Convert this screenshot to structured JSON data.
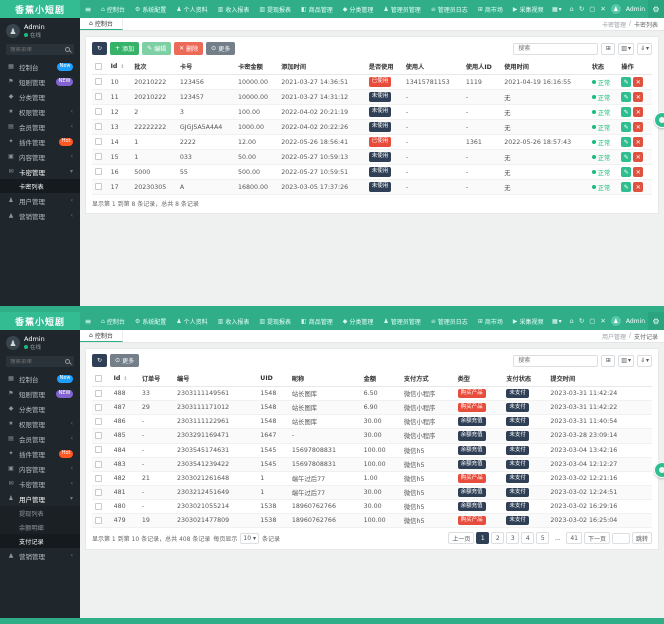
{
  "brand": {
    "logo": "香蕉小短剧",
    "primary_color": "#2fae88"
  },
  "navbar": {
    "items": [
      {
        "label": "控制台",
        "icon": "home"
      },
      {
        "label": "系统配置",
        "icon": "gear"
      },
      {
        "label": "个人资料",
        "icon": "person"
      },
      {
        "label": "收入报表",
        "icon": "chart"
      },
      {
        "label": "提现报表",
        "icon": "chart"
      },
      {
        "label": "商品管理",
        "icon": "bag"
      },
      {
        "label": "分类管理",
        "icon": "tag"
      },
      {
        "label": "管理员管理",
        "icon": "person"
      },
      {
        "label": "管理员日志",
        "icon": "log"
      },
      {
        "label": "商市场",
        "icon": "store"
      },
      {
        "label": "采集视频",
        "icon": "video"
      },
      {
        "label": "会员管理",
        "icon": "person"
      }
    ],
    "layout_dropdown_icon": "grid",
    "right_icons": [
      "home",
      "refresh",
      "expand",
      "close"
    ],
    "admin_label": "Admin"
  },
  "sidebar_user": {
    "name": "Admin",
    "status": "在线"
  },
  "sidebar_search_placeholder": "搜索菜单",
  "toolbar_search_placeholder": "搜索",
  "screens": [
    {
      "sidebar": [
        {
          "label": "控制台",
          "icon": "dashboard",
          "badge": {
            "text": "New",
            "color": "#1e9fff"
          }
        },
        {
          "label": "短剧管理",
          "icon": "drama",
          "badge": {
            "text": "NEW",
            "color": "#8065d0"
          }
        },
        {
          "label": "分类管理",
          "icon": "category"
        },
        {
          "label": "权限管理",
          "icon": "auth",
          "arrow": true
        },
        {
          "label": "会员管理",
          "icon": "member",
          "arrow": true
        },
        {
          "label": "插件管理",
          "icon": "plugin",
          "badge": {
            "text": "Hot",
            "color": "#ff5722"
          }
        },
        {
          "label": "内容管理",
          "icon": "content",
          "arrow": true
        },
        {
          "label": "卡密管理",
          "icon": "card",
          "expanded": true,
          "children": [
            {
              "label": "卡密列表",
              "active": true
            }
          ]
        },
        {
          "label": "用户管理",
          "icon": "user",
          "arrow": true
        },
        {
          "label": "营销管理",
          "icon": "marketing",
          "arrow": true
        }
      ],
      "content": {
        "tab": "控制台",
        "crumb_group": "卡密管理",
        "crumb_page": "卡密列表",
        "toolbar": [
          {
            "label": "",
            "icon": "refresh",
            "style": "dark"
          },
          {
            "label": "添加",
            "icon": "plus",
            "style": "green"
          },
          {
            "label": "编辑",
            "icon": "edit",
            "style": "lgreen"
          },
          {
            "label": "删除",
            "icon": "trash",
            "style": "red"
          },
          {
            "label": "更多",
            "icon": "circle",
            "style": "gray"
          }
        ],
        "table": {
          "columns": [
            {
              "label": "Id",
              "sort": true
            },
            {
              "label": "批次"
            },
            {
              "label": "卡号"
            },
            {
              "label": "卡密金额"
            },
            {
              "label": "添加时间"
            },
            {
              "label": "是否使用"
            },
            {
              "label": "使用人"
            },
            {
              "label": "使用人ID"
            },
            {
              "label": "使用时间"
            },
            {
              "label": "状态"
            },
            {
              "label": "操作"
            }
          ],
          "rows": [
            [
              "10",
              "20210222",
              "123456",
              "10000.00",
              "2021-03-27 14:36:51",
              {
                "badge": "已使用",
                "color": "#e74c3c"
              },
              "13415781153",
              "1119",
              "2021-04-19 16:16:55",
              {
                "dot": "正常"
              },
              {
                "ops": true
              }
            ],
            [
              "11",
              "20210222",
              "123457",
              "10000.00",
              "2021-03-27 14:31:12",
              {
                "badge": "未使用",
                "color": "#2f4056"
              },
              "-",
              "-",
              "无",
              {
                "dot": "正常"
              },
              {
                "ops": true
              }
            ],
            [
              "12",
              "2",
              "3",
              "100.00",
              "2022-04-02 20:21:19",
              {
                "badge": "未使用",
                "color": "#2f4056"
              },
              "-",
              "-",
              "无",
              {
                "dot": "正常"
              },
              {
                "ops": true
              }
            ],
            [
              "13",
              "22222222",
              "GJGJ5A5A4A4",
              "1000.00",
              "2022-04-02 20:22:26",
              {
                "badge": "未使用",
                "color": "#2f4056"
              },
              "-",
              "-",
              "无",
              {
                "dot": "正常"
              },
              {
                "ops": true
              }
            ],
            [
              "14",
              "1",
              "2222",
              "12.00",
              "2022-05-26 18:56:41",
              {
                "badge": "已使用",
                "color": "#e74c3c"
              },
              "-",
              "1361",
              "2022-05-26 18:57:43",
              {
                "dot": "正常"
              },
              {
                "ops": true
              }
            ],
            [
              "15",
              "1",
              "033",
              "50.00",
              "2022-05-27 10:59:13",
              {
                "badge": "未使用",
                "color": "#2f4056"
              },
              "-",
              "-",
              "无",
              {
                "dot": "正常"
              },
              {
                "ops": true
              }
            ],
            [
              "16",
              "5000",
              "55",
              "500.00",
              "2022-05-27 10:59:51",
              {
                "badge": "未使用",
                "color": "#2f4056"
              },
              "-",
              "-",
              "无",
              {
                "dot": "正常"
              },
              {
                "ops": true
              }
            ],
            [
              "17",
              "20230305",
              "A",
              "16800.00",
              "2023-03-05 17:37:26",
              {
                "badge": "未使用",
                "color": "#2f4056"
              },
              "-",
              "-",
              "无",
              {
                "dot": "正常"
              },
              {
                "ops": true
              }
            ]
          ]
        },
        "footer": {
          "info": "显示第 1 到第 8 条记录，总共 8 条记录"
        }
      }
    },
    {
      "sidebar": [
        {
          "label": "控制台",
          "icon": "dashboard",
          "badge": {
            "text": "New",
            "color": "#1e9fff"
          }
        },
        {
          "label": "短剧管理",
          "icon": "drama",
          "badge": {
            "text": "NEW",
            "color": "#8065d0"
          }
        },
        {
          "label": "分类管理",
          "icon": "category"
        },
        {
          "label": "权限管理",
          "icon": "auth",
          "arrow": true
        },
        {
          "label": "会员管理",
          "icon": "member",
          "arrow": true
        },
        {
          "label": "插件管理",
          "icon": "plugin",
          "badge": {
            "text": "Hot",
            "color": "#ff5722"
          }
        },
        {
          "label": "内容管理",
          "icon": "content",
          "arrow": true
        },
        {
          "label": "卡密管理",
          "icon": "card",
          "arrow": true
        },
        {
          "label": "用户管理",
          "icon": "user",
          "expanded": true,
          "children": [
            {
              "label": "提现列表"
            },
            {
              "label": "余额明细"
            },
            {
              "label": "支付记录",
              "active": true
            }
          ]
        },
        {
          "label": "营销管理",
          "icon": "marketing",
          "arrow": true
        }
      ],
      "content": {
        "tab": "控制台",
        "crumb_group": "用户管理",
        "crumb_page": "支付记录",
        "toolbar": [
          {
            "label": "",
            "icon": "refresh",
            "style": "dark"
          },
          {
            "label": "更多",
            "icon": "circle",
            "style": "gray"
          }
        ],
        "table": {
          "columns": [
            {
              "label": "Id",
              "sort": true
            },
            {
              "label": "订单号"
            },
            {
              "label": "编号"
            },
            {
              "label": "UID"
            },
            {
              "label": "昵称"
            },
            {
              "label": "金额"
            },
            {
              "label": "支付方式"
            },
            {
              "label": "类型"
            },
            {
              "label": "支付状态"
            },
            {
              "label": "提交时间"
            }
          ],
          "rows": [
            [
              "488",
              "33",
              "2303111149561",
              "1548",
              "站长图库",
              "6.50",
              "微信小程序",
              {
                "badge": "购买产品",
                "color": "#e74c3c"
              },
              {
                "badge": "未支付",
                "color": "#2f4056"
              },
              "2023-03-31 11:42:24"
            ],
            [
              "487",
              "29",
              "2303111171012",
              "1548",
              "站长图库",
              "6.90",
              "微信小程序",
              {
                "badge": "购买产品",
                "color": "#e74c3c"
              },
              {
                "badge": "未支付",
                "color": "#2f4056"
              },
              "2023-03-31 11:42:22"
            ],
            [
              "486",
              "-",
              "2303111122961",
              "1548",
              "站长图库",
              "30.00",
              "微信小程序",
              {
                "badge": "余额充值",
                "color": "#2f4056"
              },
              {
                "badge": "未支付",
                "color": "#2f4056"
              },
              "2023-03-31 11:40:54"
            ],
            [
              "485",
              "-",
              "2303291169471",
              "1647",
              "-",
              "30.00",
              "微信小程序",
              {
                "badge": "余额充值",
                "color": "#2f4056"
              },
              {
                "badge": "未支付",
                "color": "#2f4056"
              },
              "2023-03-28 23:09:14"
            ],
            [
              "484",
              "-",
              "2303545174631",
              "1545",
              "15697808831",
              "100.00",
              "微信h5",
              {
                "badge": "余额充值",
                "color": "#2f4056"
              },
              {
                "badge": "未支付",
                "color": "#2f4056"
              },
              "2023-03-04 13:42:16"
            ],
            [
              "483",
              "-",
              "2303541239422",
              "1545",
              "15697808831",
              "100.00",
              "微信h5",
              {
                "badge": "余额充值",
                "color": "#2f4056"
              },
              {
                "badge": "未支付",
                "color": "#2f4056"
              },
              "2023-03-04 12:12:27"
            ],
            [
              "482",
              "21",
              "2303021261648",
              "1",
              "端午过后77",
              "1.00",
              "微信h5",
              {
                "badge": "购买产品",
                "color": "#e74c3c"
              },
              {
                "badge": "未支付",
                "color": "#2f4056"
              },
              "2023-03-02 12:21:16"
            ],
            [
              "481",
              "-",
              "2303212451649",
              "1",
              "端午过后77",
              "30.00",
              "微信h5",
              {
                "badge": "余额充值",
                "color": "#2f4056"
              },
              {
                "badge": "未支付",
                "color": "#2f4056"
              },
              "2023-03-02 12:24:51"
            ],
            [
              "480",
              "-",
              "2303021055214",
              "1538",
              "18960762766",
              "30.00",
              "微信h5",
              {
                "badge": "余额充值",
                "color": "#2f4056"
              },
              {
                "badge": "未支付",
                "color": "#2f4056"
              },
              "2023-03-02 16:29:16"
            ],
            [
              "479",
              "19",
              "2303021477809",
              "1538",
              "18960762766",
              "100.00",
              "微信h5",
              {
                "badge": "购买产品",
                "color": "#e74c3c"
              },
              {
                "badge": "未支付",
                "color": "#2f4056"
              },
              "2023-03-02 16:25:04"
            ]
          ]
        },
        "footer": {
          "info": "显示第 1 到第 10 条记录，总共 408 条记录",
          "per_page_prefix": "每页显示",
          "per_page_value": "10",
          "per_page_suffix": "条记录",
          "prev": "上一页",
          "next": "下一页",
          "pages": [
            "1",
            "2",
            "3",
            "4",
            "5",
            "...",
            "41"
          ],
          "active_page": "1",
          "jump_label": "跳转"
        }
      }
    }
  ]
}
